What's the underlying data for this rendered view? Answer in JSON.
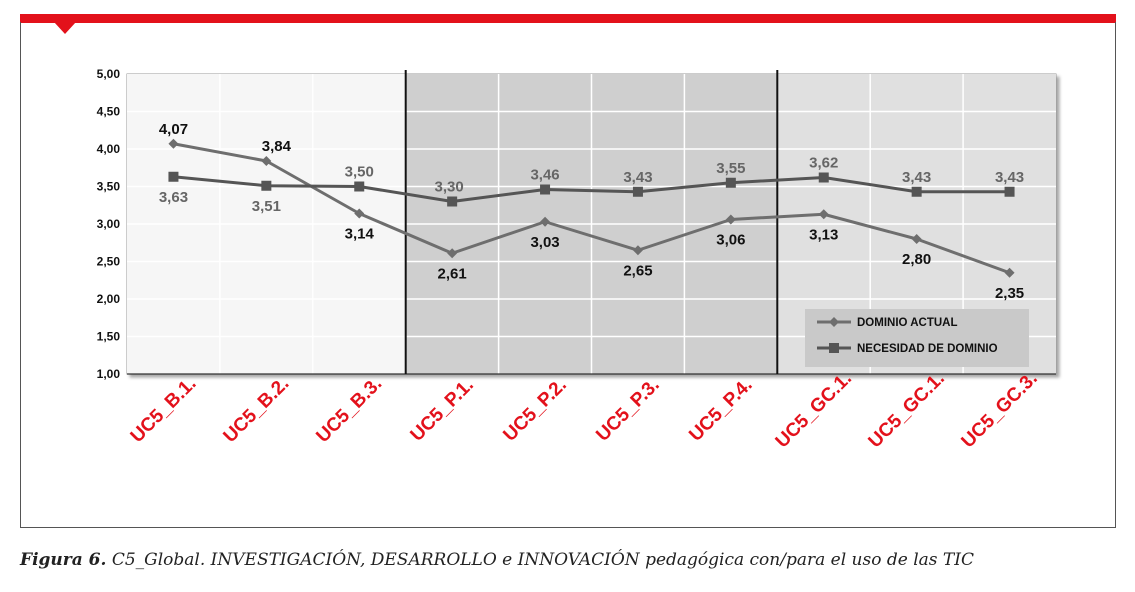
{
  "caption": {
    "label": "Figura 6.",
    "text": "C5_Global. INVESTIGACIÓN, DESARROLLO e INNOVACIÓN pedagógica con/para el uso de las TIC"
  },
  "colors": {
    "accent_red": "#e3111b",
    "series_dark": "#6e6e6e",
    "series_mid": "#555555",
    "band_light": "#f6f6f6",
    "band_dark": "#cfcfcf",
    "band_mid": "#e0e0e0"
  },
  "chart_data": {
    "type": "line",
    "title": "",
    "xlabel": "",
    "ylabel": "",
    "categories": [
      "UC5_B.1.",
      "UC5_B.2.",
      "UC5_B.3.",
      "UC5_P.1.",
      "UC5_P.2.",
      "UC5_P.3.",
      "UC5_P.4.",
      "UC5_GC.1.",
      "UC5_GC.1.",
      "UC5_GC.3."
    ],
    "ylim": [
      1.0,
      5.0
    ],
    "yticks": [
      "1,00",
      "1,50",
      "2,00",
      "2,50",
      "3,00",
      "3,50",
      "4,00",
      "4,50",
      "5,00"
    ],
    "grid": true,
    "legend_position": "bottom-right",
    "series": [
      {
        "name": "DOMINIO ACTUAL",
        "marker": "diamond",
        "values": [
          4.07,
          3.84,
          3.14,
          2.61,
          3.03,
          2.65,
          3.06,
          3.13,
          2.8,
          2.35
        ],
        "labels": [
          "4,07",
          "3,84",
          "3,14",
          "2,61",
          "3,03",
          "2,65",
          "3,06",
          "3,13",
          "2,80",
          "2,35"
        ]
      },
      {
        "name": "NECESIDAD DE DOMINIO",
        "marker": "square",
        "values": [
          3.63,
          3.51,
          3.5,
          3.3,
          3.46,
          3.43,
          3.55,
          3.62,
          3.43,
          3.43
        ],
        "labels": [
          "3,63",
          "3,51",
          "3,50",
          "3,30",
          "3,46",
          "3,43",
          "3,55",
          "3,62",
          "3,43",
          "3,43"
        ]
      }
    ],
    "bands": [
      {
        "from": 0,
        "to": 3,
        "shade": "light"
      },
      {
        "from": 3,
        "to": 7,
        "shade": "dark"
      },
      {
        "from": 7,
        "to": 10,
        "shade": "mid"
      }
    ]
  }
}
